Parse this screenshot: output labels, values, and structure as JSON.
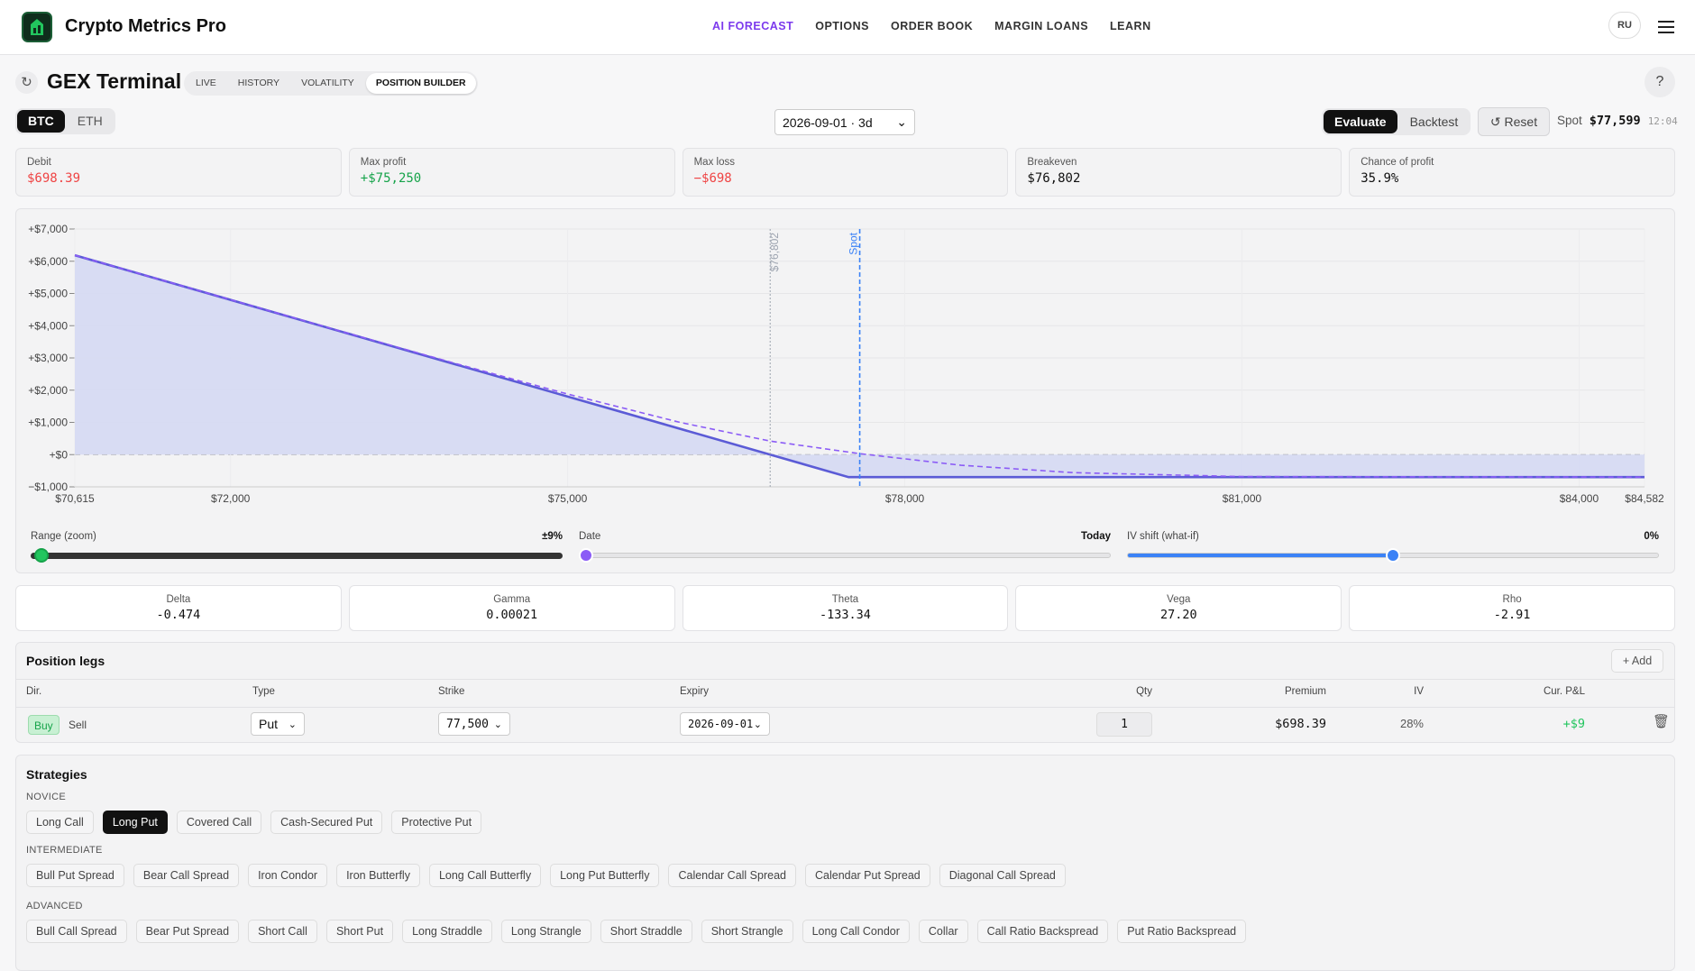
{
  "header": {
    "brand": "Crypto Metrics Pro",
    "nav": [
      "AI FORECAST",
      "OPTIONS",
      "ORDER BOOK",
      "MARGIN LOANS",
      "LEARN"
    ],
    "nav_active": 0,
    "lang": "RU"
  },
  "toolbar": {
    "title": "GEX Terminal",
    "tabs": [
      "LIVE",
      "HISTORY",
      "VOLATILITY",
      "POSITION BUILDER"
    ],
    "tab_active": 3,
    "help": "?"
  },
  "controls": {
    "assets": [
      "BTC",
      "ETH"
    ],
    "asset_active": 0,
    "expiry": "2026-09-01 · 3d",
    "modes": [
      "Evaluate",
      "Backtest"
    ],
    "mode_active": 0,
    "reset": "Reset",
    "spot_label": "Spot",
    "spot": "$77,599",
    "time": "12:04"
  },
  "metrics": [
    {
      "label": "Debit",
      "value": "$698.39",
      "color": "#ef4444"
    },
    {
      "label": "Max profit",
      "value": "+$75,250",
      "color": "#16a34a"
    },
    {
      "label": "Max loss",
      "value": "−$698",
      "color": "#ef4444"
    },
    {
      "label": "Breakeven",
      "value": "$76,802",
      "color": "#111111"
    },
    {
      "label": "Chance of profit",
      "value": "35.9%",
      "color": "#111111"
    }
  ],
  "chart": {
    "type": "line",
    "grid": true,
    "xlim": [
      70615,
      84582
    ],
    "xticks": [
      {
        "value": 70615,
        "label": "$70,615"
      },
      {
        "value": 72000,
        "label": "$72,000"
      },
      {
        "value": 75000,
        "label": "$75,000"
      },
      {
        "value": 78000,
        "label": "$78,000"
      },
      {
        "value": 81000,
        "label": "$81,000"
      },
      {
        "value": 84000,
        "label": "$84,000"
      },
      {
        "value": 84582,
        "label": "$84,582"
      }
    ],
    "ylim": [
      -1000,
      7000
    ],
    "yticks": [
      {
        "value": -1000,
        "label": "−$1,000"
      },
      {
        "value": 0,
        "label": "+$0"
      },
      {
        "value": 1000,
        "label": "+$1,000"
      },
      {
        "value": 2000,
        "label": "+$2,000"
      },
      {
        "value": 3000,
        "label": "+$3,000"
      },
      {
        "value": 4000,
        "label": "+$4,000"
      },
      {
        "value": 5000,
        "label": "+$5,000"
      },
      {
        "value": 6000,
        "label": "+$6,000"
      },
      {
        "value": 7000,
        "label": "+$7,000"
      }
    ],
    "series": [
      {
        "color": "#5b5bd6",
        "fill": "#d5d9f3",
        "dashed": false,
        "x": [
          70615,
          77500,
          84582
        ],
        "values": [
          6187,
          -698,
          -698
        ]
      },
      {
        "color": "#8b5cf6",
        "dashed": true,
        "x": [
          70615,
          73000,
          74000,
          75000,
          76000,
          76802,
          77599,
          78500,
          79500,
          81000,
          84582
        ],
        "values": [
          6187,
          3810,
          2830,
          1880,
          1000,
          420,
          30,
          -330,
          -560,
          -680,
          -698
        ]
      }
    ],
    "markers": [
      {
        "x": 76802,
        "label": "$76,802",
        "color": "#9ca3af"
      },
      {
        "x": 77599,
        "label": "Spot",
        "color": "#3b82f6"
      }
    ]
  },
  "sliders": [
    {
      "label": "Range (zoom)",
      "value": "±9%"
    },
    {
      "label": "Date",
      "value": "Today"
    },
    {
      "label": "IV shift (what-if)",
      "value": "0%"
    }
  ],
  "greeks": [
    {
      "label": "Delta",
      "value": "-0.474"
    },
    {
      "label": "Gamma",
      "value": "0.00021"
    },
    {
      "label": "Theta",
      "value": "-133.34"
    },
    {
      "label": "Vega",
      "value": "27.20"
    },
    {
      "label": "Rho",
      "value": "-2.91"
    }
  ],
  "legs": {
    "title": "Position legs",
    "add": "Add",
    "columns": [
      "Dir.",
      "Type",
      "Strike",
      "Expiry",
      "Qty",
      "Premium",
      "IV",
      "Cur. P&L"
    ],
    "rows": [
      {
        "dir": [
          "Buy",
          "Sell"
        ],
        "type": "Put",
        "strike": "77,500",
        "expiry": "2026-09-01",
        "qty": "1",
        "premium": "$698.39",
        "iv": "28%",
        "pnl": "+$9"
      }
    ]
  },
  "strategies": {
    "title": "Strategies",
    "active": [
      0,
      1
    ],
    "groups": [
      {
        "name": "NOVICE",
        "items": [
          "Long Call",
          "Long Put",
          "Covered Call",
          "Cash-Secured Put",
          "Protective Put"
        ]
      },
      {
        "name": "INTERMEDIATE",
        "items": [
          "Bull Put Spread",
          "Bear Call Spread",
          "Iron Condor",
          "Iron Butterfly",
          "Long Call Butterfly",
          "Long Put Butterfly",
          "Calendar Call Spread",
          "Calendar Put Spread",
          "Diagonal Call Spread"
        ]
      },
      {
        "name": "ADVANCED",
        "items": [
          "Bull Call Spread",
          "Bear Put Spread",
          "Short Call",
          "Short Put",
          "Long Straddle",
          "Long Strangle",
          "Short Straddle",
          "Short Strangle",
          "Long Call Condor",
          "Collar",
          "Call Ratio Backspread",
          "Put Ratio Backspread"
        ]
      }
    ]
  }
}
